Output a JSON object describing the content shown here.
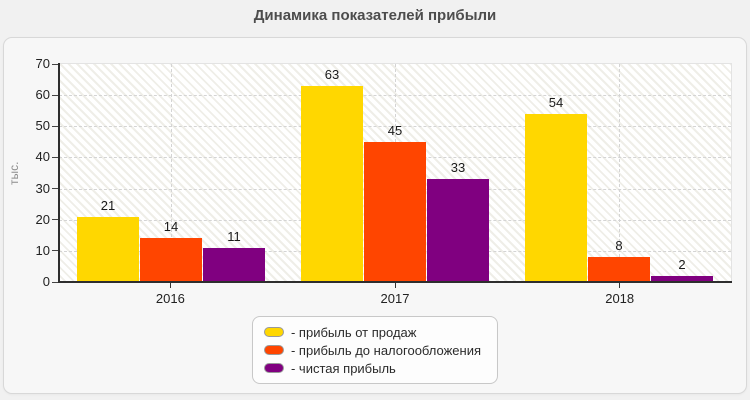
{
  "title": "Динамика показателей прибыли",
  "chart_data": {
    "type": "bar",
    "title": "Динамика показателей прибыли",
    "categories": [
      "2016",
      "2017",
      "2018"
    ],
    "series": [
      {
        "name": "прибыль от продаж",
        "legend_label": "- прибыль от продаж",
        "color": "#ffd700",
        "values": [
          21,
          63,
          54
        ]
      },
      {
        "name": "прибыль до налогообложения",
        "legend_label": "- прибыль до налогообложения",
        "color": "#ff4500",
        "values": [
          14,
          45,
          8
        ]
      },
      {
        "name": "чистая прибыль",
        "legend_label": "- чистая прибыль",
        "color": "#800080",
        "values": [
          11,
          33,
          2
        ]
      }
    ],
    "xlabel": "",
    "ylabel": "тыс.",
    "ylim": [
      0,
      70
    ],
    "yticks": [
      0,
      10,
      20,
      30,
      40,
      50,
      60,
      70
    ],
    "grid": true,
    "grid_style": "dashed",
    "bar_value_labels": true,
    "legend_position": "bottom-center"
  },
  "colors": {
    "page_bg": "#f1f1f1",
    "panel_bg": "#f7f7f7",
    "panel_border": "#d8d8d8",
    "plot_hatch": "#efeee8",
    "gridline": "#d4d4d4",
    "axis": "#2e2e2e",
    "title_text": "#4d4d4d",
    "tick_text": "#222222",
    "ylabel_text": "#8c8c8c",
    "legend_border": "#c8c8c8"
  }
}
